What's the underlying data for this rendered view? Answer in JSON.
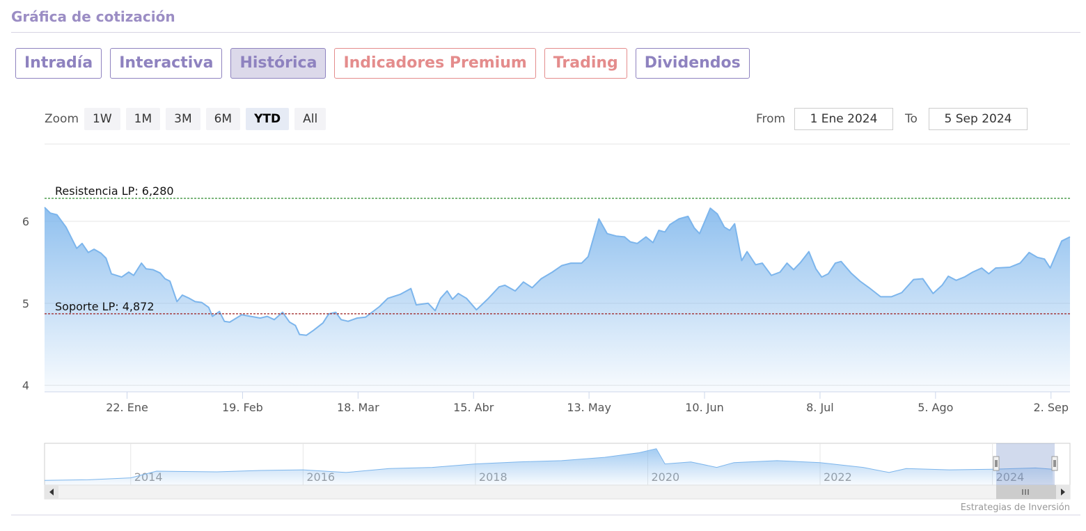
{
  "header": {
    "title": "Gráfica de cotización"
  },
  "tabs": [
    {
      "label": "Intradía",
      "color": "#8e82bf"
    },
    {
      "label": "Interactiva",
      "color": "#8e82bf"
    },
    {
      "label": "Histórica",
      "color": "#8e82bf",
      "selected": true
    },
    {
      "label": "Indicadores Premium",
      "color": "#e48c8c"
    },
    {
      "label": "Trading",
      "color": "#e48c8c"
    },
    {
      "label": "Dividendos",
      "color": "#8e82bf"
    }
  ],
  "zoom": {
    "label": "Zoom",
    "buttons": [
      "1W",
      "1M",
      "3M",
      "6M",
      "YTD",
      "All"
    ],
    "selected": 4
  },
  "range": {
    "from_label": "From",
    "from": "1 Ene 2024",
    "to_label": "To",
    "to": "5 Sep 2024"
  },
  "chart_data": {
    "type": "area",
    "color": "#7cb5ec",
    "x": [
      2,
      3.4,
      5,
      7.2,
      9.8,
      11.1,
      12.6,
      14,
      15.7,
      16.9,
      18.2,
      20.7,
      22.4,
      23.6,
      25.5,
      26.6,
      28.3,
      30,
      31.2,
      32.4,
      34.1,
      35.4,
      37.1,
      38.5,
      40.1,
      41.8,
      42.7,
      44.4,
      45.6,
      46.9,
      49.8,
      52,
      54.3,
      56,
      57.7,
      59.7,
      61.4,
      62.8,
      63.8,
      65.5,
      67.2,
      69.5,
      70.9,
      72.6,
      73.9,
      75.6,
      77.8,
      79.8,
      83.2,
      85.2,
      88.3,
      90.8,
      92.1,
      95,
      96.7,
      98,
      99.6,
      100.9,
      102.3,
      104.3,
      106.7,
      109.4,
      112.2,
      113.6,
      116.1,
      118.1,
      120.2,
      122.4,
      125.1,
      127.4,
      129.6,
      132.2,
      133.8,
      136.4,
      138.4,
      140.6,
      142.6,
      144,
      145.7,
      147.8,
      149.5,
      150.9,
      152.4,
      153.6,
      155.8,
      158,
      159.5,
      160.8,
      162,
      163.4,
      165.1,
      166.8,
      168.1,
      169.3,
      171,
      172.3,
      174.4,
      176,
      178.2,
      180.3,
      182,
      183.6,
      185.3,
      187.3,
      189,
      190.4,
      192,
      193.7,
      195.1,
      197.5,
      199.7,
      201.9,
      204.7,
      207.3,
      209.8,
      212.7,
      214.9,
      217.4,
      219.6,
      221.1,
      223,
      225,
      227,
      229.2,
      230.9,
      232.6,
      236,
      238.5,
      240.7,
      242.7,
      244.4,
      245.8,
      248.6,
      250.6
    ],
    "values": [
      6.17,
      6.1,
      6.08,
      5.93,
      5.67,
      5.73,
      5.62,
      5.66,
      5.61,
      5.55,
      5.36,
      5.32,
      5.38,
      5.34,
      5.49,
      5.42,
      5.41,
      5.37,
      5.3,
      5.27,
      5.02,
      5.1,
      5.06,
      5.02,
      5.01,
      4.95,
      4.84,
      4.9,
      4.78,
      4.77,
      4.86,
      4.84,
      4.82,
      4.84,
      4.8,
      4.89,
      4.77,
      4.73,
      4.62,
      4.61,
      4.67,
      4.76,
      4.87,
      4.89,
      4.8,
      4.78,
      4.82,
      4.83,
      4.96,
      5.06,
      5.11,
      5.18,
      4.98,
      5.0,
      4.91,
      5.06,
      5.15,
      5.05,
      5.12,
      5.06,
      4.92,
      5.05,
      5.2,
      5.22,
      5.15,
      5.26,
      5.19,
      5.3,
      5.38,
      5.46,
      5.49,
      5.49,
      5.57,
      6.03,
      5.85,
      5.82,
      5.81,
      5.75,
      5.73,
      5.81,
      5.74,
      5.89,
      5.87,
      5.96,
      6.03,
      6.06,
      5.92,
      5.85,
      5.99,
      6.16,
      6.09,
      5.93,
      5.89,
      5.97,
      5.52,
      5.63,
      5.47,
      5.49,
      5.34,
      5.38,
      5.49,
      5.41,
      5.5,
      5.63,
      5.42,
      5.32,
      5.36,
      5.49,
      5.51,
      5.37,
      5.27,
      5.19,
      5.08,
      5.08,
      5.13,
      5.29,
      5.3,
      5.12,
      5.22,
      5.33,
      5.28,
      5.32,
      5.38,
      5.43,
      5.36,
      5.43,
      5.44,
      5.49,
      5.62,
      5.56,
      5.54,
      5.43,
      5.76,
      5.81
    ],
    "xlim": [
      2,
      250.6
    ],
    "xticks": [
      {
        "value": 22,
        "label": "22. Ene"
      },
      {
        "value": 50,
        "label": "19. Feb"
      },
      {
        "value": 78,
        "label": "18. Mar"
      },
      {
        "value": 106,
        "label": "15. Abr"
      },
      {
        "value": 134,
        "label": "13. May"
      },
      {
        "value": 162,
        "label": "10. Jun"
      },
      {
        "value": 190,
        "label": "8. Jul"
      },
      {
        "value": 218,
        "label": "5. Ago"
      },
      {
        "value": 246,
        "label": "2. Sep"
      }
    ],
    "ylim": [
      3.92,
      6.9
    ],
    "yticks": [
      4,
      5,
      6
    ],
    "grid": true,
    "annotations": [
      {
        "label": "Resistencia LP: 6,280",
        "value": 6.28,
        "color": "#2e8b2e"
      },
      {
        "label": "Soporte LP: 4,872",
        "value": 4.872,
        "color": "#9b1c1c"
      }
    ]
  },
  "navigator": {
    "type": "area",
    "color": "#7cb5ec",
    "x": [
      2013,
      2013.5,
      2014,
      2014.3,
      2015,
      2015.5,
      2016,
      2016.5,
      2017,
      2017.5,
      2018,
      2018.5,
      2019,
      2019.5,
      2019.9,
      2020.1,
      2020.2,
      2020.5,
      2020.8,
      2021,
      2021.5,
      2022,
      2022.5,
      2022.8,
      2023,
      2023.5,
      2024,
      2024.5,
      2024.7
    ],
    "values": [
      2.76,
      2.87,
      3.19,
      4.28,
      4.17,
      4.4,
      4.5,
      4.06,
      4.7,
      4.9,
      5.47,
      5.8,
      6.0,
      6.55,
      7.3,
      7.96,
      5.47,
      5.8,
      4.9,
      5.68,
      6.0,
      5.68,
      4.9,
      4.06,
      4.7,
      4.5,
      4.6,
      4.8,
      4.6
    ],
    "xlim": [
      2013,
      2024.9
    ],
    "ylim": [
      2,
      8.5
    ],
    "xticks": [
      2014,
      2016,
      2018,
      2020,
      2022,
      2024
    ]
  },
  "credits": "Estrategias de Inversión"
}
